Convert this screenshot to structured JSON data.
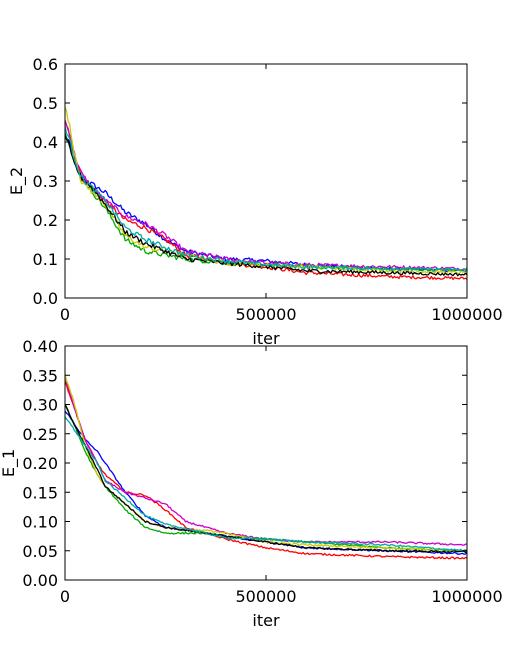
{
  "chart_data": [
    {
      "type": "line",
      "xlabel": "iter",
      "ylabel": "E_2",
      "xlim": [
        0,
        1000000
      ],
      "ylim": [
        0.0,
        0.6
      ],
      "xticks": [
        0,
        500000,
        1000000
      ],
      "xtick_labels": [
        "0",
        "500000",
        "1000000"
      ],
      "yticks": [
        0.0,
        0.1,
        0.2,
        0.3,
        0.4,
        0.5,
        0.6
      ],
      "ytick_labels": [
        "0.0",
        "0.1",
        "0.2",
        "0.3",
        "0.4",
        "0.5",
        "0.6"
      ],
      "grid": false,
      "noise": 0.006,
      "series": [
        {
          "color": "#0000ff",
          "x": [
            0,
            10000,
            20000,
            40000,
            70000,
            100000,
            150000,
            200000,
            250000,
            300000,
            400000,
            500000,
            600000,
            800000,
            1000000
          ],
          "y": [
            0.42,
            0.4,
            0.36,
            0.31,
            0.29,
            0.27,
            0.22,
            0.19,
            0.15,
            0.12,
            0.1,
            0.095,
            0.085,
            0.075,
            0.07
          ]
        },
        {
          "color": "#ff0000",
          "x": [
            0,
            10000,
            20000,
            40000,
            70000,
            100000,
            150000,
            200000,
            250000,
            300000,
            400000,
            500000,
            600000,
            800000,
            1000000
          ],
          "y": [
            0.46,
            0.43,
            0.38,
            0.31,
            0.28,
            0.25,
            0.2,
            0.18,
            0.15,
            0.11,
            0.09,
            0.08,
            0.065,
            0.055,
            0.05
          ]
        },
        {
          "color": "#cc00cc",
          "x": [
            0,
            10000,
            20000,
            40000,
            70000,
            100000,
            150000,
            200000,
            250000,
            300000,
            400000,
            500000,
            600000,
            800000,
            1000000
          ],
          "y": [
            0.45,
            0.43,
            0.38,
            0.32,
            0.28,
            0.25,
            0.21,
            0.19,
            0.16,
            0.12,
            0.1,
            0.09,
            0.085,
            0.08,
            0.075
          ]
        },
        {
          "color": "#00aa00",
          "x": [
            0,
            10000,
            20000,
            40000,
            70000,
            100000,
            150000,
            200000,
            250000,
            300000,
            400000,
            500000,
            600000,
            800000,
            1000000
          ],
          "y": [
            0.43,
            0.4,
            0.36,
            0.31,
            0.27,
            0.23,
            0.15,
            0.12,
            0.11,
            0.1,
            0.09,
            0.085,
            0.08,
            0.075,
            0.07
          ]
        },
        {
          "color": "#cccc00",
          "x": [
            0,
            10000,
            20000,
            40000,
            70000,
            100000,
            150000,
            200000,
            250000,
            300000,
            400000,
            500000,
            600000,
            800000,
            1000000
          ],
          "y": [
            0.49,
            0.45,
            0.39,
            0.3,
            0.27,
            0.24,
            0.16,
            0.13,
            0.12,
            0.11,
            0.09,
            0.085,
            0.08,
            0.07,
            0.065
          ]
        },
        {
          "color": "#000000",
          "x": [
            0,
            10000,
            20000,
            40000,
            70000,
            100000,
            150000,
            200000,
            250000,
            300000,
            400000,
            500000,
            600000,
            800000,
            1000000
          ],
          "y": [
            0.42,
            0.39,
            0.35,
            0.31,
            0.28,
            0.24,
            0.17,
            0.14,
            0.12,
            0.1,
            0.09,
            0.08,
            0.07,
            0.065,
            0.06
          ]
        },
        {
          "color": "#00aaaa",
          "x": [
            0,
            10000,
            20000,
            40000,
            70000,
            100000,
            150000,
            200000,
            250000,
            300000,
            400000,
            500000,
            600000,
            800000,
            1000000
          ],
          "y": [
            0.44,
            0.41,
            0.37,
            0.31,
            0.28,
            0.25,
            0.18,
            0.15,
            0.13,
            0.11,
            0.095,
            0.085,
            0.08,
            0.075,
            0.072
          ]
        }
      ]
    },
    {
      "type": "line",
      "xlabel": "iter",
      "ylabel": "E_1",
      "xlim": [
        0,
        1000000
      ],
      "ylim": [
        0.0,
        0.4
      ],
      "xticks": [
        0,
        500000,
        1000000
      ],
      "xtick_labels": [
        "0",
        "500000",
        "1000000"
      ],
      "yticks": [
        0.0,
        0.05,
        0.1,
        0.15,
        0.2,
        0.25,
        0.3,
        0.35,
        0.4
      ],
      "ytick_labels": [
        "0.00",
        "0.05",
        "0.10",
        "0.15",
        "0.20",
        "0.25",
        "0.30",
        "0.35",
        "0.40"
      ],
      "grid": false,
      "noise": 0.0015,
      "series": [
        {
          "color": "#0000ff",
          "x": [
            0,
            20000,
            50000,
            80000,
            100000,
            150000,
            200000,
            250000,
            300000,
            350000,
            400000,
            500000,
            600000,
            800000,
            1000000
          ],
          "y": [
            0.29,
            0.27,
            0.24,
            0.22,
            0.2,
            0.15,
            0.11,
            0.09,
            0.085,
            0.08,
            0.075,
            0.065,
            0.055,
            0.05,
            0.045
          ]
        },
        {
          "color": "#ff0000",
          "x": [
            0,
            20000,
            50000,
            80000,
            100000,
            150000,
            200000,
            250000,
            300000,
            350000,
            400000,
            500000,
            600000,
            800000,
            1000000
          ],
          "y": [
            0.34,
            0.3,
            0.24,
            0.2,
            0.18,
            0.15,
            0.145,
            0.12,
            0.09,
            0.08,
            0.07,
            0.055,
            0.045,
            0.04,
            0.037
          ]
        },
        {
          "color": "#cc00cc",
          "x": [
            0,
            20000,
            50000,
            80000,
            100000,
            150000,
            200000,
            250000,
            300000,
            350000,
            400000,
            500000,
            600000,
            800000,
            1000000
          ],
          "y": [
            0.35,
            0.3,
            0.24,
            0.2,
            0.17,
            0.15,
            0.14,
            0.13,
            0.1,
            0.09,
            0.08,
            0.07,
            0.065,
            0.065,
            0.06
          ]
        },
        {
          "color": "#00aa00",
          "x": [
            0,
            20000,
            50000,
            80000,
            100000,
            150000,
            200000,
            250000,
            300000,
            350000,
            400000,
            500000,
            600000,
            800000,
            1000000
          ],
          "y": [
            0.3,
            0.27,
            0.22,
            0.18,
            0.16,
            0.12,
            0.09,
            0.08,
            0.08,
            0.08,
            0.075,
            0.07,
            0.065,
            0.055,
            0.05
          ]
        },
        {
          "color": "#cccc00",
          "x": [
            0,
            20000,
            50000,
            80000,
            100000,
            150000,
            200000,
            250000,
            300000,
            350000,
            400000,
            500000,
            600000,
            800000,
            1000000
          ],
          "y": [
            0.35,
            0.31,
            0.23,
            0.18,
            0.16,
            0.13,
            0.1,
            0.09,
            0.085,
            0.085,
            0.08,
            0.065,
            0.06,
            0.055,
            0.05
          ]
        },
        {
          "color": "#000000",
          "x": [
            0,
            20000,
            50000,
            80000,
            100000,
            150000,
            200000,
            250000,
            300000,
            350000,
            400000,
            500000,
            600000,
            800000,
            1000000
          ],
          "y": [
            0.3,
            0.27,
            0.23,
            0.19,
            0.16,
            0.13,
            0.1,
            0.09,
            0.085,
            0.08,
            0.075,
            0.065,
            0.055,
            0.05,
            0.048
          ]
        },
        {
          "color": "#00aaaa",
          "x": [
            0,
            20000,
            50000,
            80000,
            100000,
            150000,
            200000,
            250000,
            300000,
            350000,
            400000,
            500000,
            600000,
            800000,
            1000000
          ],
          "y": [
            0.28,
            0.26,
            0.23,
            0.2,
            0.17,
            0.14,
            0.11,
            0.095,
            0.088,
            0.08,
            0.072,
            0.07,
            0.065,
            0.06,
            0.05
          ]
        }
      ]
    }
  ]
}
